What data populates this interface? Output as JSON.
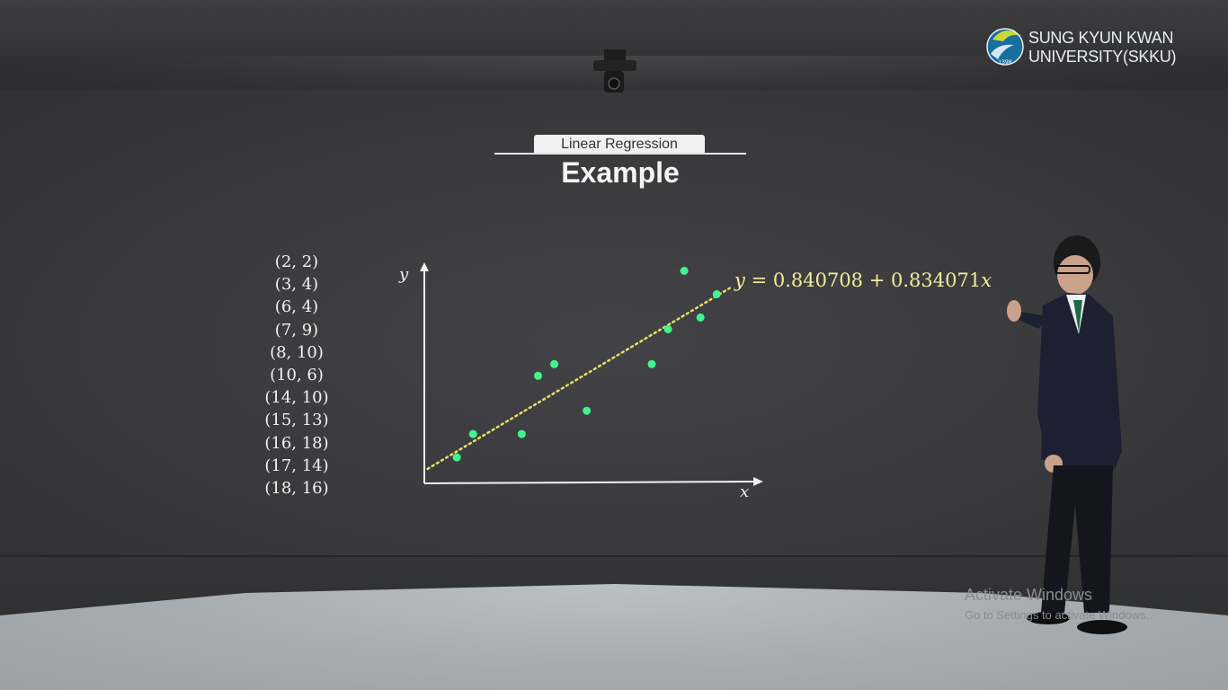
{
  "university_logo": {
    "line1": "SUNG KYUN KWAN",
    "line2": "UNIVERSITY(SKKU)",
    "emblem_text": "1398"
  },
  "slide": {
    "badge": "Linear Regression",
    "title": "Example"
  },
  "data_points": [
    "(2, 2)",
    "(3, 4)",
    "(6, 4)",
    "(7, 9)",
    "(8, 10)",
    "(10, 6)",
    "(14, 10)",
    "(15, 13)",
    "(16, 18)",
    "(17, 14)",
    "(18, 16)"
  ],
  "equation": {
    "lhs": "y",
    "rhs_prefix": "= 0.840708 + 0.834071",
    "variable": "x"
  },
  "chart_data": {
    "type": "scatter",
    "x": [
      2,
      3,
      6,
      7,
      8,
      10,
      14,
      15,
      16,
      17,
      18
    ],
    "y": [
      2,
      4,
      4,
      9,
      10,
      6,
      10,
      13,
      18,
      14,
      16
    ],
    "xlabel": "x",
    "ylabel": "y",
    "trendline": {
      "intercept": 0.840708,
      "slope": 0.834071,
      "style": "dotted"
    },
    "grid": false,
    "point_color": "#3ff58e",
    "line_color": "#e4e06a"
  },
  "watermark": {
    "title": "Activate Windows",
    "subtitle": "Go to Settings to activate Windows."
  }
}
